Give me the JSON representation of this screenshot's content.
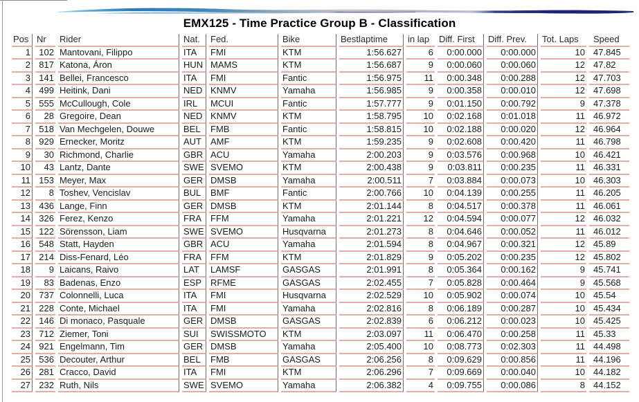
{
  "page": {
    "title": "EMX125 - Time Practice Group B - Classification"
  },
  "header_graphic": {
    "name": "blue-brush-swoosh",
    "colors": {
      "light_blue": "#7fc1e4",
      "mid_blue": "#2d7ab3",
      "faded_gray": "#a9b4c0",
      "dark_navy": "#1a2275"
    }
  },
  "table": {
    "columns": [
      {
        "key": "pos",
        "label": "Pos"
      },
      {
        "key": "nr",
        "label": "Nr"
      },
      {
        "key": "rider",
        "label": "Rider"
      },
      {
        "key": "nat",
        "label": "Nat."
      },
      {
        "key": "fed",
        "label": "Fed."
      },
      {
        "key": "bike",
        "label": "Bike"
      },
      {
        "key": "bestlaptime",
        "label": "Bestlaptime"
      },
      {
        "key": "in_lap",
        "label": "in lap"
      },
      {
        "key": "diff_first",
        "label": "Diff. First"
      },
      {
        "key": "diff_prev",
        "label": "Diff. Prev."
      },
      {
        "key": "tot_laps",
        "label": "Tot. Laps"
      },
      {
        "key": "speed",
        "label": "Speed"
      }
    ],
    "rows": [
      [
        "1",
        "102",
        "Mantovani, Filippo",
        "ITA",
        "FMI",
        "KTM",
        "1:56.627",
        "6",
        "0:00.000",
        "0:00.000",
        "10",
        "47.845"
      ],
      [
        "2",
        "817",
        "Katona, Áron",
        "HUN",
        "MAMS",
        "KTM",
        "1:56.687",
        "9",
        "0:00.060",
        "0:00.060",
        "12",
        "47.82"
      ],
      [
        "3",
        "141",
        "Bellei, Francesco",
        "ITA",
        "FMI",
        "Fantic",
        "1:56.975",
        "11",
        "0:00.348",
        "0:00.288",
        "12",
        "47.703"
      ],
      [
        "4",
        "499",
        "Heitink, Dani",
        "NED",
        "KNMV",
        "Yamaha",
        "1:56.985",
        "9",
        "0:00.358",
        "0:00.010",
        "12",
        "47.698"
      ],
      [
        "5",
        "555",
        "McCullough, Cole",
        "IRL",
        "MCUI",
        "Fantic",
        "1:57.777",
        "9",
        "0:01.150",
        "0:00.792",
        "9",
        "47.378"
      ],
      [
        "6",
        "28",
        "Gregoire, Dean",
        "NED",
        "KNMV",
        "KTM",
        "1:58.795",
        "10",
        "0:02.168",
        "0:01.018",
        "11",
        "46.972"
      ],
      [
        "7",
        "518",
        "Van Mechgelen, Douwe",
        "BEL",
        "FMB",
        "Fantic",
        "1:58.815",
        "10",
        "0:02.188",
        "0:00.020",
        "12",
        "46.964"
      ],
      [
        "8",
        "929",
        "Ernecker, Moritz",
        "AUT",
        "AMF",
        "KTM",
        "1:59.235",
        "9",
        "0:02.608",
        "0:00.420",
        "11",
        "46.798"
      ],
      [
        "9",
        "30",
        "Richmond, Charlie",
        "GBR",
        "ACU",
        "Yamaha",
        "2:00.203",
        "9",
        "0:03.576",
        "0:00.968",
        "10",
        "46.421"
      ],
      [
        "10",
        "43",
        "Lantz, Dante",
        "SWE",
        "SVEMO",
        "KTM",
        "2:00.438",
        "9",
        "0:03.811",
        "0:00.235",
        "11",
        "46.331"
      ],
      [
        "11",
        "153",
        "Meyer, Max",
        "GER",
        "DMSB",
        "Yamaha",
        "2:00.511",
        "7",
        "0:03.884",
        "0:00.073",
        "10",
        "46.303"
      ],
      [
        "12",
        "8",
        "Toshev, Vencislav",
        "BUL",
        "BMF",
        "Fantic",
        "2:00.766",
        "10",
        "0:04.139",
        "0:00.255",
        "11",
        "46.205"
      ],
      [
        "13",
        "436",
        "Lange, Finn",
        "GER",
        "DMSB",
        "KTM",
        "2:01.144",
        "8",
        "0:04.517",
        "0:00.378",
        "11",
        "46.061"
      ],
      [
        "14",
        "326",
        "Ferez, Kenzo",
        "FRA",
        "FFM",
        "Yamaha",
        "2:01.221",
        "12",
        "0:04.594",
        "0:00.077",
        "12",
        "46.032"
      ],
      [
        "15",
        "122",
        "Sörensson, Liam",
        "SWE",
        "SVEMO",
        "Husqvarna",
        "2:01.273",
        "8",
        "0:04.646",
        "0:00.052",
        "11",
        "46.012"
      ],
      [
        "16",
        "548",
        "Statt, Hayden",
        "GBR",
        "ACU",
        "Yamaha",
        "2:01.594",
        "8",
        "0:04.967",
        "0:00.321",
        "12",
        "45.89"
      ],
      [
        "17",
        "214",
        "Diss-Fenard, Léo",
        "FRA",
        "FFM",
        "KTM",
        "2:01.829",
        "9",
        "0:05.202",
        "0:00.235",
        "12",
        "45.802"
      ],
      [
        "18",
        "9",
        "Laicans, Raivo",
        "LAT",
        "LAMSF",
        "GASGAS",
        "2:01.991",
        "8",
        "0:05.364",
        "0:00.162",
        "9",
        "45.741"
      ],
      [
        "19",
        "83",
        "Badenas, Enzo",
        "ESP",
        "RFME",
        "GASGAS",
        "2:02.455",
        "7",
        "0:05.828",
        "0:00.464",
        "9",
        "45.568"
      ],
      [
        "20",
        "737",
        "Colonnelli, Luca",
        "ITA",
        "FMI",
        "Husqvarna",
        "2:02.529",
        "10",
        "0:05.902",
        "0:00.074",
        "10",
        "45.54"
      ],
      [
        "21",
        "228",
        "Conte, Michael",
        "ITA",
        "FMI",
        "Yamaha",
        "2:02.816",
        "8",
        "0:06.189",
        "0:00.287",
        "10",
        "45.434"
      ],
      [
        "22",
        "146",
        "Di monaco, Pasquale",
        "GER",
        "DMSB",
        "GASGAS",
        "2:02.839",
        "6",
        "0:06.212",
        "0:00.023",
        "10",
        "45.425"
      ],
      [
        "23",
        "712",
        "Ziemer, Toni",
        "SUI",
        "SWISSMOTO",
        "KTM",
        "2:03.097",
        "11",
        "0:06.470",
        "0:00.258",
        "11",
        "45.33"
      ],
      [
        "24",
        "921",
        "Engelmann, Tim",
        "GER",
        "DMSB",
        "Yamaha",
        "2:05.400",
        "10",
        "0:08.773",
        "0:02.303",
        "11",
        "44.498"
      ],
      [
        "25",
        "536",
        "Decouter, Arthur",
        "BEL",
        "FMB",
        "GASGAS",
        "2:06.256",
        "8",
        "0:09.629",
        "0:00.856",
        "11",
        "44.196"
      ],
      [
        "26",
        "281",
        "Cracco, David",
        "ITA",
        "FMI",
        "KTM",
        "2:06.296",
        "7",
        "0:09.669",
        "0:00.040",
        "10",
        "44.182"
      ],
      [
        "27",
        "232",
        "Ruth, Nils",
        "SWE",
        "SVEMO",
        "Yamaha",
        "2:06.382",
        "4",
        "0:09.755",
        "0:00.086",
        "8",
        "44.152"
      ]
    ]
  }
}
